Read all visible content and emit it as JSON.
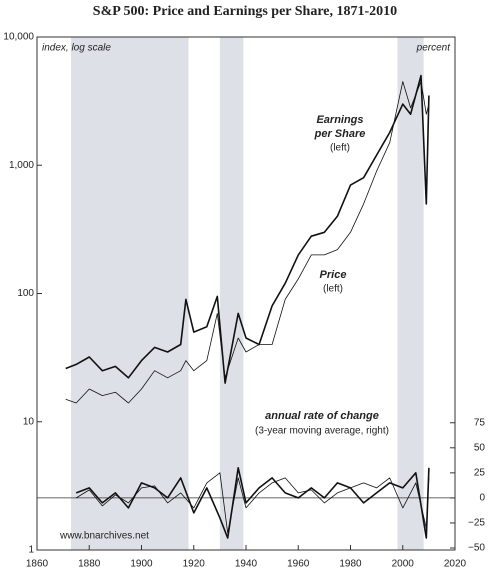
{
  "chart_data": {
    "type": "line",
    "title": "S&P 500: Price and Earnings per Share, 1871-2010",
    "xlim": [
      1860,
      2020
    ],
    "xticks": [
      1860,
      1880,
      1900,
      1920,
      1940,
      1960,
      1980,
      2000,
      2020
    ],
    "ylim": [
      1,
      10000
    ],
    "yscale": "log",
    "yticks": [
      1,
      10,
      100,
      {
        "value": 1000,
        "label": "1,000"
      },
      {
        "value": 10000,
        "label": "10,000"
      }
    ],
    "y2lim": [
      -52,
      460
    ],
    "y2ticks": [
      {
        "value": -50,
        "label": "−50"
      },
      {
        "value": -25,
        "label": "−25"
      },
      0,
      25,
      50,
      75
    ],
    "shaded_periods": [
      [
        1873,
        1918
      ],
      [
        1930,
        1939
      ],
      [
        1998,
        2008
      ]
    ],
    "shade_color": "#dde0e6",
    "series": [
      {
        "name": "Earnings per Share",
        "color": "#111",
        "width": "thick",
        "x": [
          1871,
          1875,
          1880,
          1885,
          1890,
          1895,
          1900,
          1905,
          1910,
          1915,
          1917,
          1920,
          1925,
          1929,
          1932,
          1937,
          1940,
          1945,
          1950,
          1955,
          1960,
          1965,
          1970,
          1975,
          1980,
          1985,
          1990,
          1995,
          2000,
          2003,
          2007,
          2009,
          2010
        ],
        "values": [
          26,
          28,
          32,
          25,
          27,
          22,
          30,
          38,
          35,
          40,
          90,
          50,
          55,
          95,
          20,
          70,
          45,
          40,
          80,
          120,
          200,
          280,
          300,
          400,
          700,
          800,
          1200,
          1800,
          3000,
          2500,
          5000,
          500,
          3500
        ]
      },
      {
        "name": "Price",
        "color": "#111",
        "width": "thin",
        "x": [
          1871,
          1875,
          1880,
          1885,
          1890,
          1895,
          1900,
          1905,
          1910,
          1915,
          1917,
          1920,
          1925,
          1929,
          1932,
          1937,
          1940,
          1945,
          1950,
          1955,
          1960,
          1965,
          1970,
          1975,
          1980,
          1985,
          1990,
          1995,
          2000,
          2003,
          2007,
          2009,
          2010
        ],
        "values": [
          15,
          14,
          18,
          16,
          17,
          14,
          18,
          25,
          22,
          25,
          30,
          25,
          30,
          70,
          22,
          45,
          35,
          40,
          40,
          90,
          130,
          200,
          200,
          220,
          300,
          500,
          900,
          1500,
          4500,
          2800,
          4500,
          2500,
          3000
        ]
      },
      {
        "color": "#111",
        "width": "thick",
        "axis": "y2",
        "x": [
          1875,
          1880,
          1885,
          1890,
          1895,
          1900,
          1905,
          1910,
          1915,
          1920,
          1925,
          1930,
          1933,
          1937,
          1940,
          1945,
          1950,
          1955,
          1960,
          1965,
          1970,
          1975,
          1980,
          1985,
          1990,
          1995,
          2000,
          2005,
          2009,
          2010
        ],
        "values": [
          5,
          10,
          -5,
          5,
          -10,
          15,
          10,
          0,
          20,
          -15,
          10,
          -20,
          -40,
          30,
          -5,
          10,
          20,
          5,
          0,
          10,
          0,
          15,
          10,
          -5,
          5,
          15,
          10,
          25,
          -40,
          30
        ]
      },
      {
        "color": "#111",
        "width": "thin",
        "axis": "y2",
        "x": [
          1875,
          1880,
          1885,
          1890,
          1895,
          1900,
          1905,
          1910,
          1915,
          1920,
          1925,
          1930,
          1933,
          1937,
          1940,
          1945,
          1950,
          1955,
          1960,
          1965,
          1970,
          1975,
          1980,
          1985,
          1990,
          1995,
          2000,
          2005,
          2009,
          2010
        ],
        "values": [
          0,
          8,
          -8,
          3,
          -5,
          10,
          12,
          -5,
          5,
          -10,
          15,
          25,
          -35,
          20,
          -10,
          5,
          15,
          20,
          5,
          8,
          -5,
          5,
          10,
          15,
          10,
          20,
          -10,
          15,
          -30,
          20
        ]
      }
    ],
    "annotations": [
      "index, log scale",
      "percent",
      "Earnings",
      "per Share",
      "(left)",
      "Price",
      "(left)",
      "annual rate of change",
      "(3-year moving average, right)",
      "www.bnarchives.net"
    ]
  }
}
